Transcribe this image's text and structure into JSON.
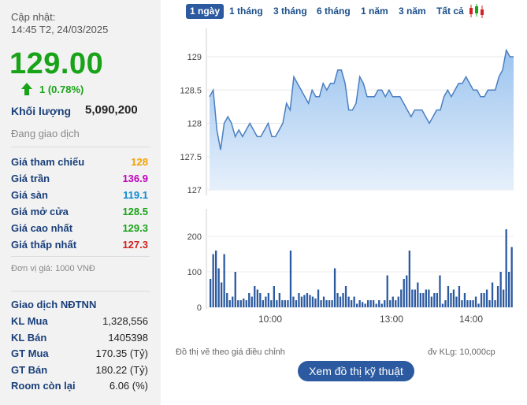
{
  "header": {
    "update_label": "Cập nhật:",
    "update_time": "14:45 T2, 24/03/2025"
  },
  "quote": {
    "price": "129.00",
    "change": "1 (0.78%)",
    "direction_icon": "up-arrow-icon",
    "up_color": "#19a319",
    "volume_label": "Khối lượng",
    "volume": "5,090,200",
    "status": "Đang giao dịch"
  },
  "price_rows": [
    {
      "label": "Giá tham chiếu",
      "value": "128",
      "color": "#f0a000"
    },
    {
      "label": "Giá trần",
      "value": "136.9",
      "color": "#c000c0"
    },
    {
      "label": "Giá sàn",
      "value": "119.1",
      "color": "#0a8ad1"
    },
    {
      "label": "Giá mở cửa",
      "value": "128.5",
      "color": "#19a319"
    },
    {
      "label": "Giá cao nhất",
      "value": "129.3",
      "color": "#19a319"
    },
    {
      "label": "Giá thấp nhất",
      "value": "127.3",
      "color": "#d42020"
    }
  ],
  "unit_note": "Đơn vị giá: 1000 VNĐ",
  "foreign": {
    "title": "Giao dịch NĐTNN",
    "rows": [
      {
        "label": "KL Mua",
        "value": "1,328,556"
      },
      {
        "label": "KL Bán",
        "value": "1405398"
      },
      {
        "label": "GT Mua",
        "value": "170.35 (Tỷ)"
      },
      {
        "label": "GT Bán",
        "value": "180.22 (Tỷ)"
      },
      {
        "label": "Room còn lại",
        "value": "6.06 (%)"
      }
    ]
  },
  "tabs": [
    "1 ngày",
    "1 tháng",
    "3 tháng",
    "6 tháng",
    "1 năm",
    "3 năm",
    "Tất cả"
  ],
  "active_tab": 0,
  "chart_icon": "candlestick-icon",
  "notes": {
    "left": "Đồ thị vẽ theo giá điều chỉnh",
    "right": "đv KLg: 10,000cp"
  },
  "tech_button": "Xem đồ thị kỹ thuật",
  "chart_data": [
    {
      "type": "area",
      "ylim": [
        127,
        129.2
      ],
      "y_ticks": [
        "129",
        "128.5",
        "128",
        "127.5",
        "127"
      ],
      "x_ticks": [
        "10:00",
        "13:00",
        "14:00"
      ],
      "series": [
        {
          "values": [
            128.4,
            128.5,
            127.9,
            127.6,
            128.0,
            128.1,
            128.0,
            127.8,
            127.9,
            127.8,
            127.9,
            128.0,
            127.9,
            127.8,
            127.8,
            127.9,
            128.0,
            127.8,
            127.8,
            127.9,
            128.0,
            128.3,
            128.2,
            128.7,
            128.6,
            128.5,
            128.4,
            128.3,
            128.5,
            128.4,
            128.4,
            128.6,
            128.5,
            128.6,
            128.6,
            128.8,
            128.8,
            128.6,
            128.2,
            128.2,
            128.3,
            128.7,
            128.6,
            128.4,
            128.4,
            128.4,
            128.5,
            128.5,
            128.4,
            128.5,
            128.4,
            128.4,
            128.4,
            128.3,
            128.2,
            128.1,
            128.2,
            128.2,
            128.2,
            128.1,
            128.0,
            128.1,
            128.2,
            128.2,
            128.4,
            128.5,
            128.4,
            128.5,
            128.6,
            128.6,
            128.7,
            128.6,
            128.5,
            128.5,
            128.4,
            128.4,
            128.5,
            128.5,
            128.5,
            128.7,
            128.8,
            129.1,
            129.0,
            129.0
          ]
        }
      ]
    },
    {
      "type": "bar",
      "ylim": [
        0,
        240
      ],
      "y_ticks": [
        "200",
        "100",
        "0"
      ],
      "values": [
        80,
        150,
        160,
        110,
        70,
        150,
        40,
        20,
        30,
        100,
        20,
        20,
        25,
        20,
        40,
        30,
        60,
        50,
        40,
        20,
        30,
        40,
        20,
        60,
        20,
        40,
        20,
        20,
        20,
        160,
        30,
        20,
        40,
        30,
        35,
        40,
        35,
        30,
        25,
        50,
        20,
        30,
        20,
        20,
        20,
        110,
        40,
        30,
        40,
        60,
        30,
        20,
        30,
        10,
        20,
        15,
        10,
        20,
        20,
        20,
        10,
        20,
        10,
        20,
        90,
        20,
        30,
        20,
        30,
        50,
        80,
        90,
        160,
        50,
        50,
        70,
        40,
        40,
        50,
        50,
        30,
        40,
        40,
        90,
        10,
        20,
        60,
        40,
        50,
        30,
        60,
        20,
        40,
        20,
        20,
        20,
        30,
        10,
        40,
        40,
        50,
        20,
        70,
        20,
        60,
        100,
        50,
        220,
        100,
        170
      ]
    }
  ]
}
